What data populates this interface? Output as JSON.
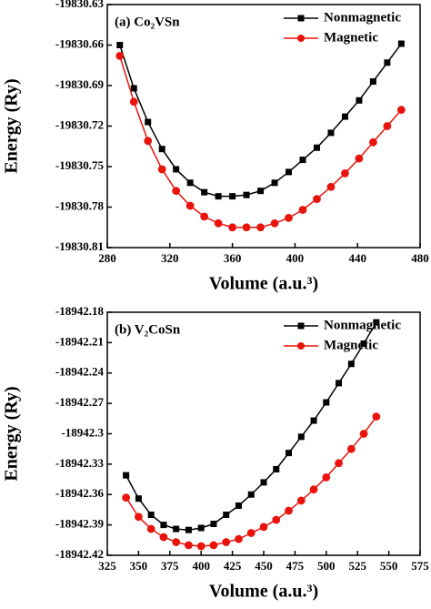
{
  "chart_data": [
    {
      "type": "line",
      "title": "(a)  Co₂VSn",
      "xlabel": "Volume (a.u.³)",
      "ylabel": "Energy (Ry)",
      "x": [
        288,
        297,
        306,
        315,
        324,
        333,
        342,
        351,
        360,
        369,
        378,
        387,
        396,
        405,
        414,
        423,
        432,
        441,
        450,
        459,
        468
      ],
      "series": [
        {
          "name": "Nonmagnetic",
          "color": "#000000",
          "marker": "square",
          "values": [
            -19830.66,
            -19830.692,
            -19830.717,
            -19830.737,
            -19830.752,
            -19830.762,
            -19830.769,
            -19830.772,
            -19830.772,
            -19830.771,
            -19830.768,
            -19830.762,
            -19830.754,
            -19830.745,
            -19830.736,
            -19830.725,
            -19830.713,
            -19830.701,
            -19830.687,
            -19830.673,
            -19830.659
          ]
        },
        {
          "name": "Magnetic",
          "color": "#e8140c",
          "marker": "circle",
          "values": [
            -19830.668,
            -19830.702,
            -19830.731,
            -19830.752,
            -19830.768,
            -19830.779,
            -19830.787,
            -19830.792,
            -19830.795,
            -19830.795,
            -19830.795,
            -19830.792,
            -19830.788,
            -19830.782,
            -19830.774,
            -19830.765,
            -19830.755,
            -19830.744,
            -19830.732,
            -19830.72,
            -19830.708
          ]
        }
      ],
      "xlim": [
        280,
        480
      ],
      "xticks": [
        280,
        320,
        360,
        400,
        440,
        480
      ],
      "ylim": [
        -19830.81,
        -19830.63
      ],
      "yticks": [
        -19830.81,
        -19830.78,
        -19830.75,
        -19830.72,
        -19830.69,
        -19830.66,
        -19830.63
      ],
      "legend": "upper right"
    },
    {
      "type": "line",
      "title": "(b)  V₂CoSn",
      "xlabel": "Volume (a.u.³)",
      "ylabel": "Energy (Ry)",
      "x": [
        340,
        350,
        360,
        370,
        380,
        390,
        400,
        410,
        420,
        430,
        440,
        450,
        460,
        470,
        480,
        490,
        500,
        510,
        520,
        530,
        540
      ],
      "series": [
        {
          "name": "Nonmagnetic",
          "color": "#000000",
          "marker": "square",
          "values": [
            -18942.341,
            -18942.364,
            -18942.38,
            -18942.39,
            -18942.394,
            -18942.395,
            -18942.393,
            -18942.389,
            -18942.38,
            -18942.371,
            -18942.36,
            -18942.348,
            -18942.335,
            -18942.319,
            -18942.303,
            -18942.287,
            -18942.269,
            -18942.25,
            -18942.231,
            -18942.211,
            -18942.19
          ]
        },
        {
          "name": "Magnetic",
          "color": "#e8140c",
          "marker": "circle",
          "values": [
            -18942.363,
            -18942.382,
            -18942.394,
            -18942.402,
            -18942.407,
            -18942.41,
            -18942.411,
            -18942.41,
            -18942.407,
            -18942.404,
            -18942.398,
            -18942.392,
            -18942.385,
            -18942.376,
            -18942.366,
            -18942.355,
            -18942.343,
            -18942.329,
            -18942.315,
            -18942.3,
            -18942.283
          ]
        }
      ],
      "xlim": [
        325,
        575
      ],
      "xticks": [
        325,
        350,
        375,
        400,
        425,
        450,
        475,
        500,
        525,
        550,
        575
      ],
      "ylim": [
        -18942.42,
        -18942.18
      ],
      "yticks": [
        -18942.42,
        -18942.39,
        -18942.36,
        -18942.33,
        -18942.3,
        -18942.27,
        -18942.24,
        -18942.21,
        -18942.18
      ],
      "legend": "upper right"
    }
  ]
}
